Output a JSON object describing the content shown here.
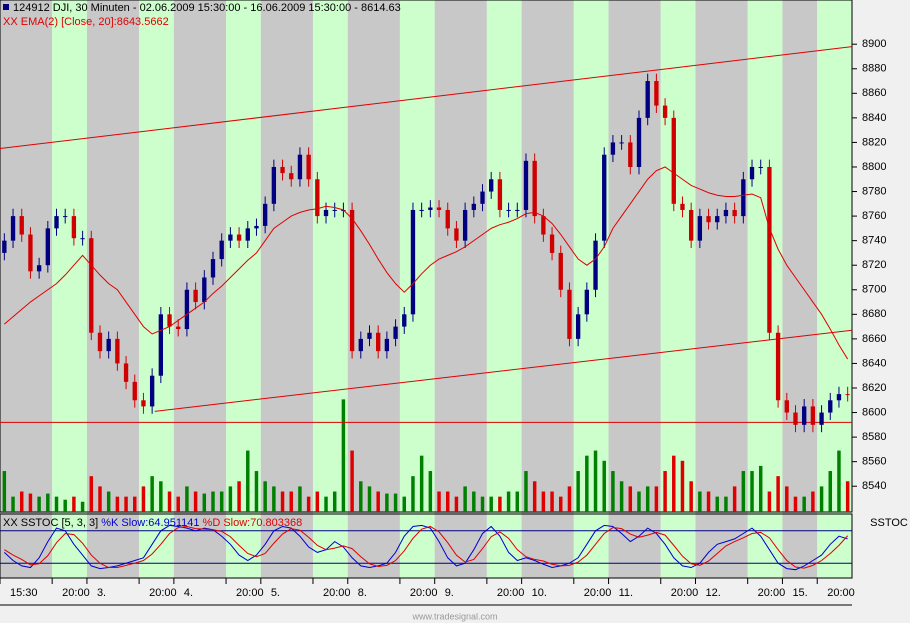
{
  "chart_data": [
    {
      "type": "candlestick",
      "title": "124912  DJI, 30 Minuten - 02.06.2009 15:30:00 - 16.06.2009 15:30:00 - 8614.63",
      "categories": [
        "15:30",
        null,
        null,
        null,
        null,
        null,
        "20:00",
        null,
        null,
        null,
        "3.",
        null,
        null,
        null,
        null,
        null,
        "20:00",
        null,
        null,
        null,
        "4.",
        null,
        null,
        null,
        null,
        null,
        "20:00",
        null,
        null,
        null,
        "5.",
        null,
        null,
        null,
        null,
        null,
        "20:00",
        null,
        null,
        null,
        "8.",
        null,
        null,
        null,
        null,
        null,
        "20:00",
        null,
        null,
        null,
        "9.",
        null,
        null,
        null,
        null,
        null,
        "20:00",
        null,
        null,
        null,
        "10.",
        null,
        null,
        null,
        null,
        null,
        "20:00",
        null,
        null,
        null,
        "11.",
        null,
        null,
        null,
        null,
        null,
        "20:00",
        null,
        null,
        null,
        "12.",
        null,
        null,
        null,
        null,
        null,
        "20:00",
        null,
        null,
        null,
        "15.",
        null,
        null,
        null,
        "20:00",
        null,
        null,
        null
      ],
      "open": [
        8730,
        8740,
        8760,
        8745,
        8715,
        8720,
        8750,
        8760,
        8760,
        8742,
        8742,
        8665,
        8650,
        8660,
        8640,
        8625,
        8610,
        8605,
        8630,
        8680,
        8670,
        8668,
        8700,
        8690,
        8710,
        8725,
        8740,
        8745,
        8740,
        8750,
        8752,
        8770,
        8800,
        8795,
        8790,
        8810,
        8790,
        8760,
        8765,
        8765,
        8765,
        8650,
        8660,
        8665,
        8650,
        8660,
        8670,
        8680,
        8765,
        8765,
        8767,
        8765,
        8750,
        8740,
        8765,
        8770,
        8780,
        8790,
        8765,
        8765,
        8765,
        8805,
        8760,
        8745,
        8730,
        8700,
        8660,
        8680,
        8700,
        8740,
        8810,
        8820,
        8820,
        8800,
        8840,
        8870,
        8850,
        8840,
        8770,
        8765,
        8740,
        8760,
        8755,
        8760,
        8765,
        8760,
        8790,
        8800,
        8800,
        8665,
        8610,
        8600,
        8590,
        8605,
        8590,
        8600,
        8610,
        8615
      ],
      "high": [
        8746,
        8766,
        8766,
        8751,
        8726,
        8756,
        8766,
        8766,
        8766,
        8748,
        8748,
        8671,
        8666,
        8666,
        8646,
        8631,
        8616,
        8636,
        8686,
        8686,
        8676,
        8706,
        8706,
        8716,
        8731,
        8746,
        8751,
        8751,
        8756,
        8758,
        8776,
        8806,
        8806,
        8801,
        8816,
        8816,
        8796,
        8771,
        8771,
        8771,
        8771,
        8666,
        8671,
        8671,
        8666,
        8676,
        8686,
        8771,
        8771,
        8773,
        8773,
        8771,
        8756,
        8771,
        8776,
        8786,
        8796,
        8796,
        8771,
        8771,
        8811,
        8811,
        8766,
        8751,
        8736,
        8706,
        8686,
        8706,
        8746,
        8816,
        8826,
        8826,
        8826,
        8846,
        8876,
        8876,
        8856,
        8846,
        8776,
        8771,
        8766,
        8766,
        8766,
        8771,
        8771,
        8796,
        8806,
        8806,
        8806,
        8671,
        8616,
        8606,
        8611,
        8611,
        8606,
        8616,
        8621,
        8621
      ],
      "low": [
        8724,
        8734,
        8739,
        8709,
        8709,
        8714,
        8744,
        8754,
        8736,
        8736,
        8659,
        8644,
        8644,
        8634,
        8619,
        8604,
        8599,
        8599,
        8624,
        8664,
        8662,
        8662,
        8684,
        8684,
        8704,
        8719,
        8734,
        8734,
        8734,
        8744,
        8746,
        8764,
        8789,
        8784,
        8784,
        8784,
        8754,
        8754,
        8759,
        8759,
        8644,
        8644,
        8654,
        8644,
        8644,
        8654,
        8664,
        8674,
        8759,
        8759,
        8759,
        8744,
        8734,
        8734,
        8759,
        8764,
        8774,
        8759,
        8759,
        8759,
        8759,
        8754,
        8739,
        8724,
        8694,
        8654,
        8654,
        8674,
        8694,
        8734,
        8804,
        8814,
        8794,
        8794,
        8834,
        8844,
        8834,
        8764,
        8759,
        8734,
        8734,
        8749,
        8749,
        8754,
        8754,
        8754,
        8784,
        8794,
        8659,
        8604,
        8594,
        8584,
        8584,
        8584,
        8584,
        8594,
        8604,
        8609
      ],
      "close": [
        8740,
        8760,
        8745,
        8715,
        8720,
        8750,
        8760,
        8760,
        8742,
        8742,
        8665,
        8650,
        8660,
        8640,
        8625,
        8610,
        8605,
        8630,
        8680,
        8670,
        8668,
        8700,
        8690,
        8710,
        8725,
        8740,
        8745,
        8740,
        8750,
        8752,
        8770,
        8800,
        8795,
        8790,
        8810,
        8790,
        8760,
        8765,
        8765,
        8765,
        8650,
        8660,
        8665,
        8650,
        8660,
        8670,
        8680,
        8765,
        8765,
        8767,
        8765,
        8750,
        8740,
        8765,
        8770,
        8780,
        8790,
        8765,
        8765,
        8765,
        8805,
        8760,
        8745,
        8730,
        8700,
        8660,
        8680,
        8700,
        8740,
        8810,
        8820,
        8820,
        8800,
        8840,
        8870,
        8850,
        8840,
        8770,
        8765,
        8740,
        8760,
        8755,
        8760,
        8765,
        8760,
        8790,
        8800,
        8800,
        8665,
        8610,
        8600,
        8590,
        8605,
        8590,
        8600,
        8610,
        8615,
        8614.63
      ],
      "volume": [
        40,
        15,
        20,
        18,
        15,
        18,
        15,
        12,
        15,
        10,
        35,
        25,
        20,
        15,
        15,
        15,
        25,
        35,
        30,
        20,
        15,
        25,
        20,
        18,
        20,
        20,
        25,
        30,
        60,
        40,
        30,
        25,
        20,
        20,
        25,
        15,
        20,
        15,
        20,
        110,
        60,
        30,
        25,
        20,
        18,
        18,
        15,
        35,
        55,
        40,
        20,
        20,
        15,
        25,
        20,
        15,
        15,
        15,
        20,
        20,
        40,
        30,
        20,
        20,
        15,
        25,
        40,
        55,
        60,
        50,
        40,
        30,
        25,
        20,
        25,
        25,
        40,
        55,
        50,
        30,
        20,
        20,
        15,
        15,
        25,
        40,
        40,
        45,
        20,
        35,
        25,
        15,
        15,
        20,
        25,
        40,
        60,
        30
      ],
      "volume_ylim": [
        0,
        500
      ],
      "ema": {
        "name": "XX EMA(2) [Close, 20]:8643.5662",
        "color": "#e00000",
        "values": [
          8672,
          8678,
          8684,
          8690,
          8695,
          8700,
          8705,
          8712,
          8720,
          8728,
          8720,
          8712,
          8705,
          8700,
          8690,
          8680,
          8670,
          8664,
          8667,
          8670,
          8675,
          8680,
          8685,
          8690,
          8697,
          8703,
          8710,
          8717,
          8724,
          8730,
          8740,
          8750,
          8755,
          8760,
          8763,
          8765,
          8766,
          8768,
          8767,
          8765,
          8758,
          8748,
          8737,
          8725,
          8714,
          8705,
          8698,
          8705,
          8713,
          8720,
          8725,
          8728,
          8731,
          8735,
          8740,
          8745,
          8750,
          8753,
          8755,
          8758,
          8762,
          8763,
          8760,
          8754,
          8745,
          8735,
          8725,
          8720,
          8725,
          8735,
          8750,
          8760,
          8770,
          8780,
          8790,
          8797,
          8800,
          8795,
          8790,
          8785,
          8782,
          8779,
          8777,
          8776,
          8776,
          8777,
          8778,
          8775,
          8750,
          8733,
          8720,
          8710,
          8700,
          8690,
          8680,
          8668,
          8655,
          8643.5662
        ]
      },
      "trendlines": [
        {
          "x": [
            -0.5,
            97.5
          ],
          "y": [
            8815,
            8898
          ],
          "color": "#e00000"
        },
        {
          "x": [
            17.3,
            97.5
          ],
          "y": [
            8601,
            8667
          ],
          "color": "#e00000"
        },
        {
          "x": [
            -0.5,
            97.5
          ],
          "y": [
            8592,
            8592
          ],
          "color": "#e00000"
        }
      ],
      "ylim": [
        8519,
        8936
      ],
      "yticks": [
        8540,
        8560,
        8580,
        8600,
        8620,
        8640,
        8660,
        8680,
        8700,
        8720,
        8740,
        8760,
        8780,
        8800,
        8820,
        8840,
        8860,
        8880,
        8900
      ],
      "up_color": "#000080",
      "down_color": "#d00000",
      "volume_up_color": "#008000",
      "volume_down_color": "#e00000",
      "band_colors": [
        "#c8c8c8",
        "#ccffcc"
      ]
    },
    {
      "type": "line",
      "title": "XX SSTOC [5, 3, 3] ",
      "label": "SSTOC",
      "series": [
        {
          "name": "%K Slow:64.951141",
          "color": "#0000d0",
          "values": [
            40,
            25,
            15,
            12,
            30,
            60,
            85,
            80,
            55,
            35,
            15,
            10,
            12,
            15,
            20,
            25,
            30,
            55,
            80,
            90,
            88,
            85,
            80,
            85,
            82,
            70,
            55,
            35,
            25,
            35,
            55,
            80,
            88,
            85,
            70,
            50,
            40,
            45,
            60,
            50,
            30,
            15,
            12,
            15,
            20,
            40,
            70,
            88,
            90,
            85,
            60,
            30,
            15,
            20,
            45,
            75,
            88,
            70,
            40,
            25,
            30,
            25,
            18,
            12,
            15,
            20,
            30,
            55,
            80,
            90,
            88,
            75,
            60,
            70,
            85,
            75,
            55,
            30,
            15,
            12,
            20,
            40,
            55,
            60,
            65,
            75,
            85,
            70,
            45,
            20,
            10,
            8,
            15,
            25,
            35,
            55,
            70,
            64.951141
          ]
        },
        {
          "name": " %D Slow:70.803368",
          "color": "#e00000",
          "values": [
            45,
            35,
            27,
            17,
            19,
            34,
            58,
            75,
            73,
            57,
            35,
            20,
            12,
            12,
            16,
            20,
            25,
            37,
            55,
            75,
            86,
            88,
            84,
            83,
            82,
            79,
            69,
            53,
            38,
            32,
            38,
            57,
            74,
            84,
            81,
            68,
            53,
            45,
            48,
            52,
            47,
            32,
            19,
            14,
            16,
            25,
            43,
            66,
            83,
            88,
            78,
            58,
            35,
            22,
            27,
            47,
            69,
            78,
            66,
            45,
            32,
            27,
            24,
            18,
            15,
            16,
            22,
            35,
            55,
            75,
            86,
            84,
            74,
            68,
            72,
            77,
            72,
            53,
            33,
            19,
            16,
            24,
            38,
            52,
            60,
            67,
            75,
            77,
            67,
            45,
            25,
            13,
            11,
            16,
            25,
            38,
            53,
            70.803368
          ]
        }
      ],
      "ylim": [
        0,
        100
      ],
      "levels": [
        20,
        80
      ],
      "level_color": "#000080"
    }
  ],
  "footer": "www.tradesignal.com"
}
